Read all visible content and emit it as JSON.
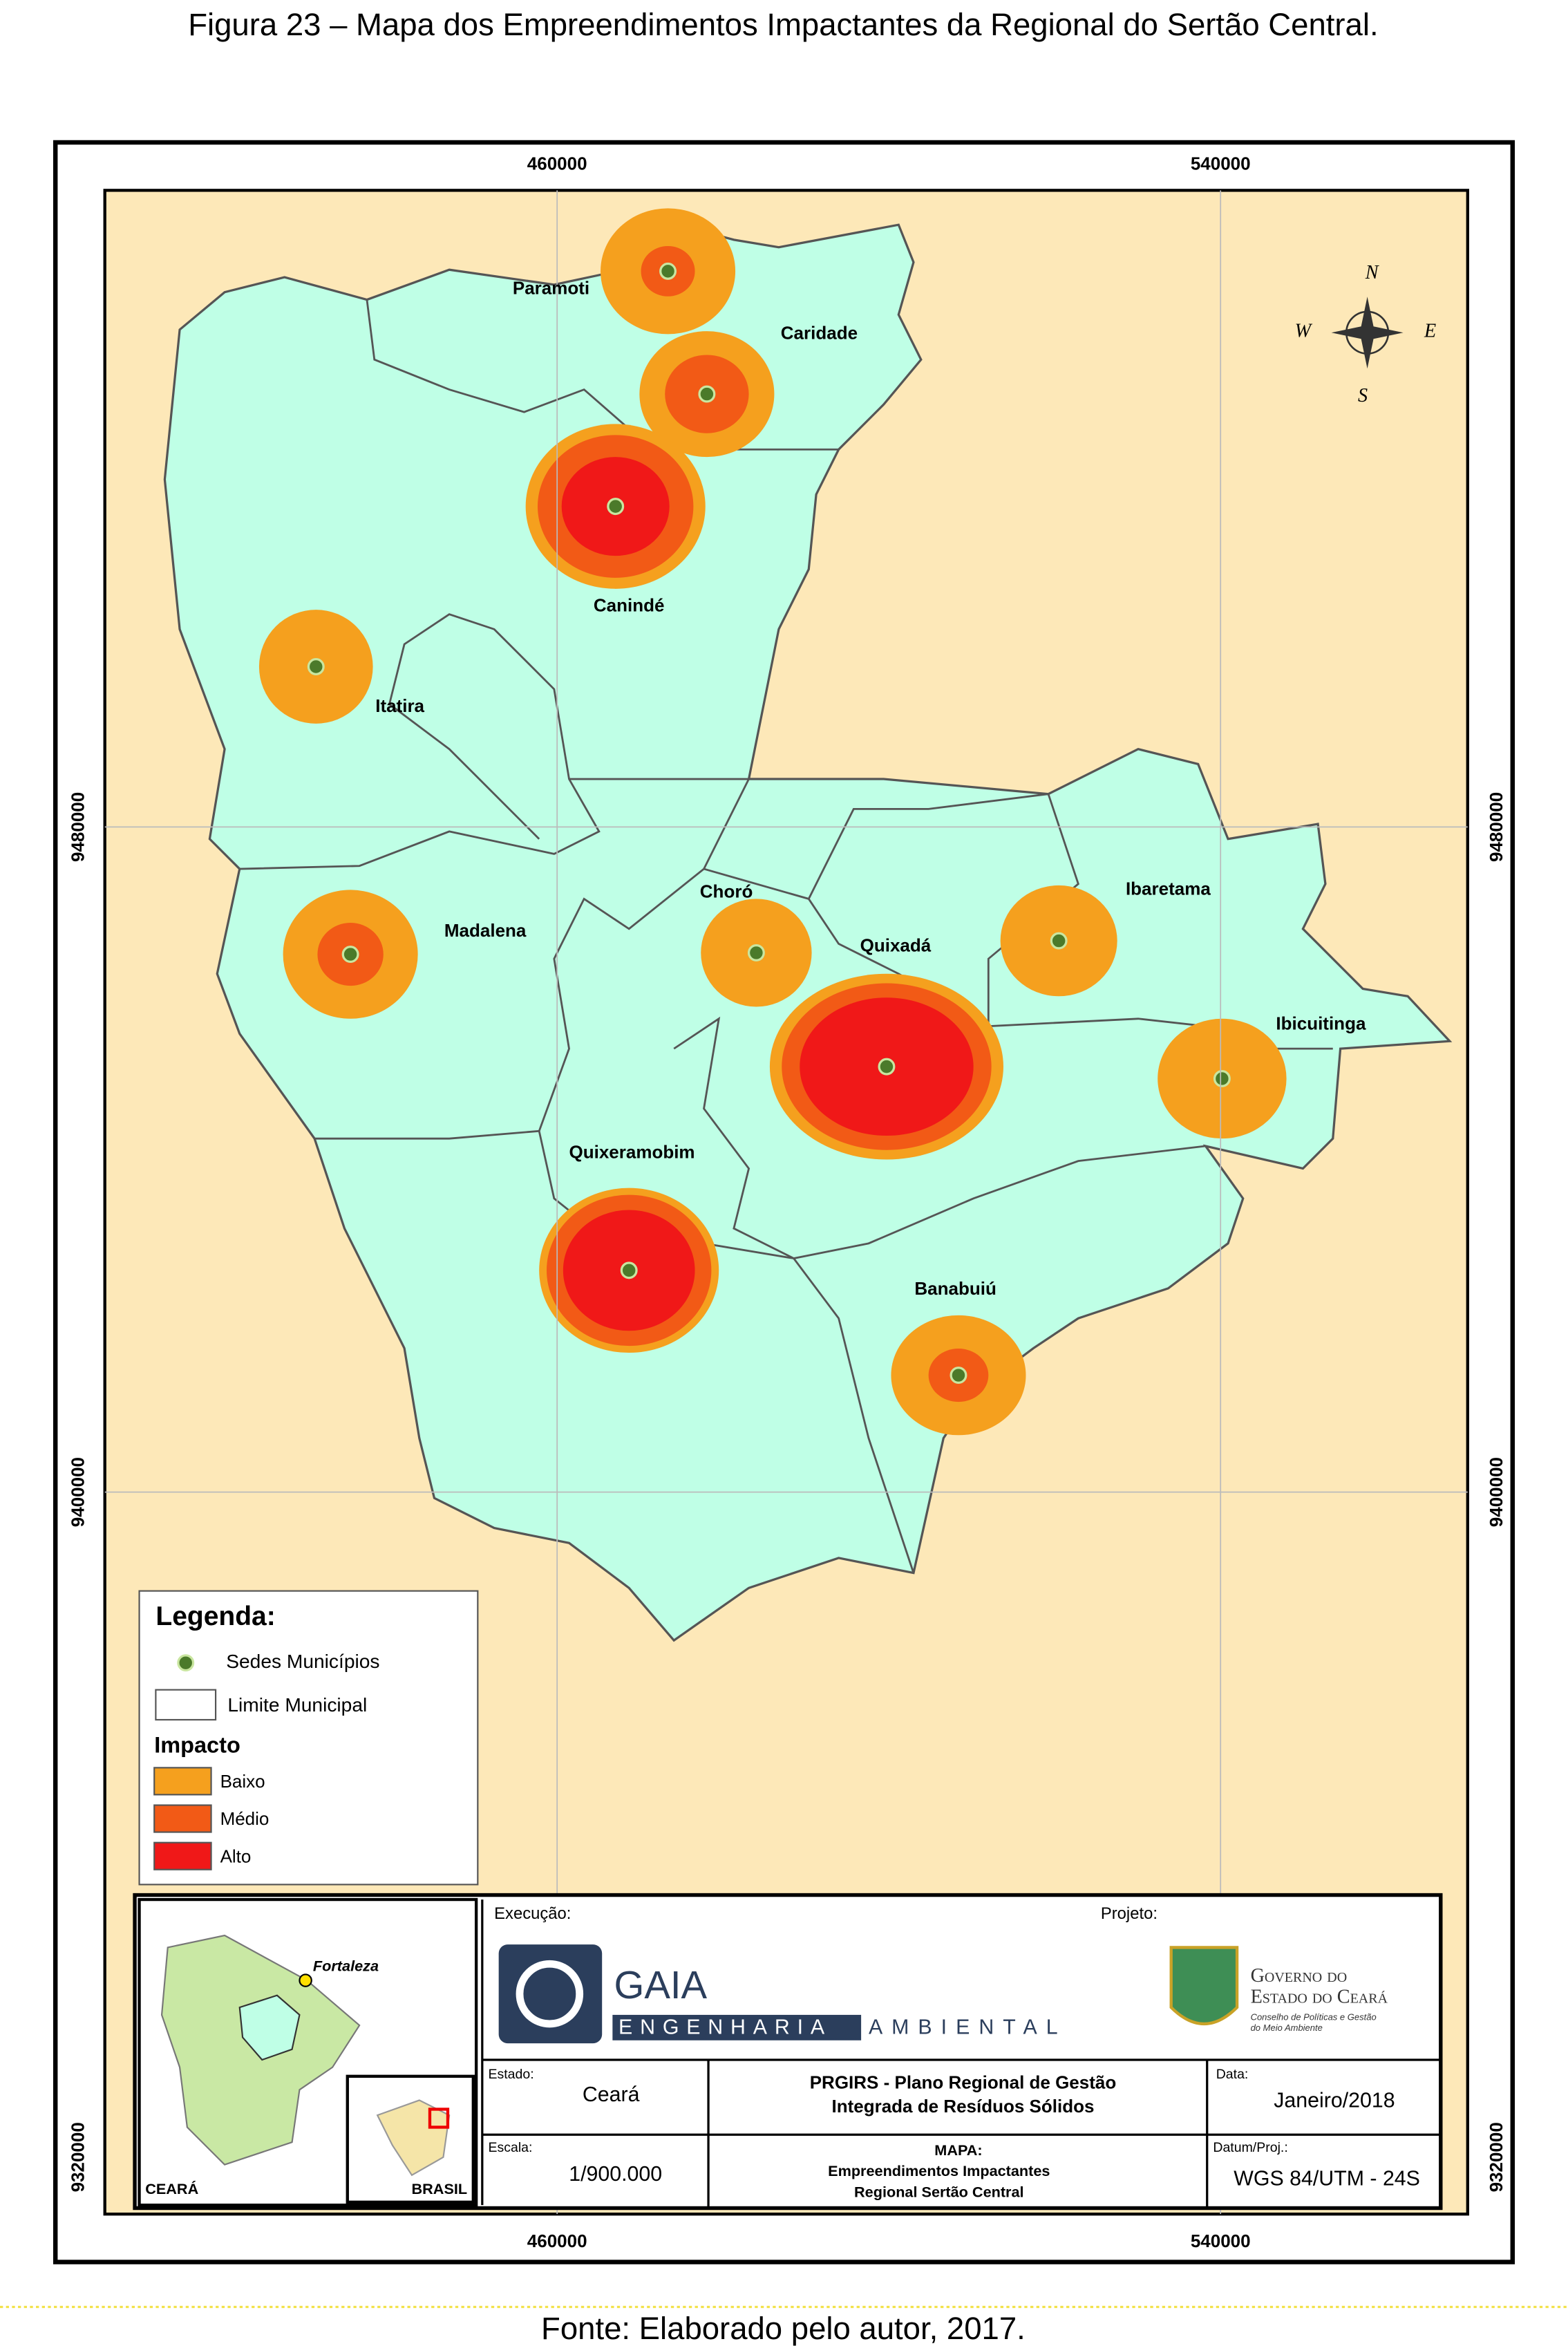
{
  "title": "Figura 23 – Mapa dos Empreendimentos Impactantes da Regional do Sertão Central.",
  "source": "Fonte: Elaborado pelo autor, 2017.",
  "coordinates": {
    "easting": [
      "460000",
      "540000"
    ],
    "northing": [
      "9480000",
      "9400000",
      "9320000"
    ]
  },
  "compass": [
    "N",
    "W",
    "E",
    "S"
  ],
  "municipalities": [
    "Paramoti",
    "Caridade",
    "Canindé",
    "Itatira",
    "Madalena",
    "Choró",
    "Quixadá",
    "Ibaretama",
    "Ibicuitinga",
    "Quixeramobim",
    "Banabuiú"
  ],
  "legend": {
    "title": "Legenda:",
    "seats": "Sedes Municípios",
    "boundary": "Limite Municipal",
    "impact_title": "Impacto",
    "impact_levels": [
      "Baixo",
      "Médio",
      "Alto"
    ]
  },
  "inset": {
    "city": "Fortaleza",
    "state": "CEARÁ",
    "country": "BRASIL"
  },
  "panel": {
    "execution_label": "Execução:",
    "project_label": "Projeto:",
    "executor": {
      "name": "GAIA",
      "line1": "ENGENHARIA",
      "line2": "AMBIENTAL"
    },
    "government": {
      "line1": "Governo do",
      "line2": "Estado do Ceará",
      "line3": "Conselho de Políticas e Gestão",
      "line4": "do Meio Ambiente"
    },
    "state_label": "Estado:",
    "state": "Ceará",
    "plan": [
      "PRGIRS - Plano Regional de Gestão",
      "Integrada de Resíduos Sólidos"
    ],
    "date_label": "Data:",
    "date": "Janeiro/2018",
    "scale_label": "Escala:",
    "scale": "1/900.000",
    "map_label": "MAPA:",
    "map_title": [
      "Empreendimentos Impactantes",
      "Regional Sertão Central"
    ],
    "datum_label": "Datum/Proj.:",
    "datum": "WGS 84/UTM - 24S"
  }
}
